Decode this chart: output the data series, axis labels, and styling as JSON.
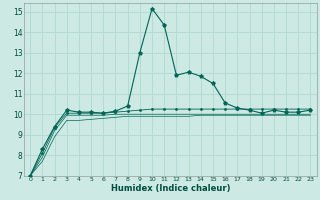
{
  "title": "",
  "xlabel": "Humidex (Indice chaleur)",
  "ylabel": "",
  "bg_color": "#cce9e4",
  "grid_color": "#b0d8d0",
  "line_color": "#006655",
  "xlim": [
    -0.5,
    23.5
  ],
  "ylim": [
    7,
    15.4
  ],
  "x_ticks": [
    0,
    1,
    2,
    3,
    4,
    5,
    6,
    7,
    8,
    9,
    10,
    11,
    12,
    13,
    14,
    15,
    16,
    17,
    18,
    19,
    20,
    21,
    22,
    23
  ],
  "y_ticks": [
    7,
    8,
    9,
    10,
    11,
    12,
    13,
    14,
    15
  ],
  "series1_x": [
    0,
    1,
    2,
    3,
    4,
    5,
    6,
    7,
    8,
    9,
    10,
    11,
    12,
    13,
    14,
    15,
    16,
    17,
    18,
    19,
    20,
    21,
    22,
    23
  ],
  "series1_y": [
    7.0,
    8.3,
    9.4,
    10.2,
    10.1,
    10.1,
    10.05,
    10.15,
    10.4,
    13.0,
    15.15,
    14.35,
    11.9,
    12.05,
    11.85,
    11.5,
    10.55,
    10.3,
    10.2,
    10.05,
    10.2,
    10.1,
    10.1,
    10.2
  ],
  "series2_x": [
    0,
    1,
    2,
    3,
    4,
    5,
    6,
    7,
    8,
    9,
    10,
    11,
    12,
    13,
    14,
    15,
    16,
    17,
    18,
    19,
    20,
    21,
    22,
    23
  ],
  "series2_y": [
    7.0,
    8.1,
    9.35,
    10.05,
    10.05,
    10.05,
    10.05,
    10.1,
    10.15,
    10.2,
    10.25,
    10.25,
    10.25,
    10.25,
    10.25,
    10.25,
    10.25,
    10.25,
    10.25,
    10.25,
    10.25,
    10.25,
    10.25,
    10.25
  ],
  "series3_x": [
    0,
    1,
    2,
    3,
    4,
    5,
    6,
    7,
    8,
    9,
    10,
    11,
    12,
    13,
    14,
    15,
    16,
    17,
    18,
    19,
    20,
    21,
    22,
    23
  ],
  "series3_y": [
    7.0,
    7.9,
    9.2,
    9.95,
    9.95,
    9.95,
    9.95,
    10.0,
    10.0,
    10.0,
    10.0,
    10.0,
    10.0,
    10.0,
    10.0,
    10.0,
    10.0,
    10.0,
    10.0,
    10.0,
    10.0,
    10.0,
    10.0,
    10.0
  ],
  "series4_x": [
    0,
    1,
    2,
    3,
    4,
    5,
    6,
    7,
    8,
    9,
    10,
    11,
    12,
    13,
    14,
    15,
    16,
    17,
    18,
    19,
    20,
    21,
    22,
    23
  ],
  "series4_y": [
    7.0,
    7.7,
    8.9,
    9.7,
    9.7,
    9.75,
    9.8,
    9.85,
    9.9,
    9.9,
    9.9,
    9.9,
    9.9,
    9.9,
    9.95,
    9.95,
    9.95,
    9.95,
    9.95,
    9.95,
    9.95,
    9.95,
    9.95,
    9.95
  ]
}
